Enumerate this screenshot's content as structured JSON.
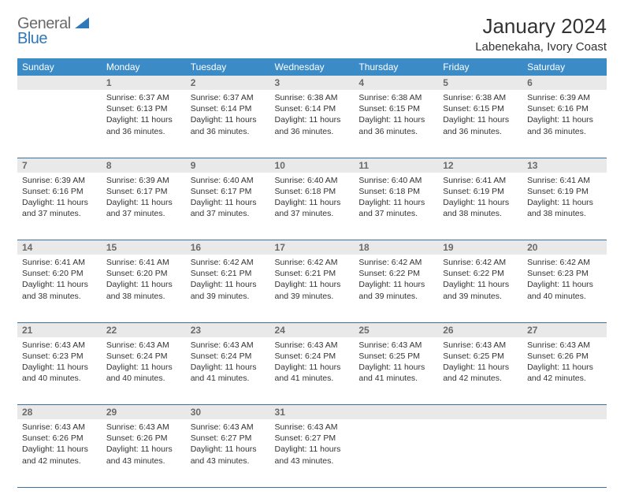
{
  "brand": {
    "general": "General",
    "blue": "Blue"
  },
  "title": {
    "month": "January 2024",
    "location": "Labenekaha, Ivory Coast"
  },
  "weekdays": [
    "Sunday",
    "Monday",
    "Tuesday",
    "Wednesday",
    "Thursday",
    "Friday",
    "Saturday"
  ],
  "colors": {
    "header_bg": "#3b8bc7",
    "header_text": "#ffffff",
    "daynum_bg": "#e9e9e9",
    "daynum_text": "#6a6a6a",
    "rule": "#3b6fa0",
    "brand_blue": "#3178b9",
    "brand_gray": "#6b6b6b",
    "body_text": "#333333",
    "page_bg": "#ffffff"
  },
  "weeks": [
    [
      {
        "n": "",
        "lines": []
      },
      {
        "n": "1",
        "lines": [
          "Sunrise: 6:37 AM",
          "Sunset: 6:13 PM",
          "Daylight: 11 hours and 36 minutes."
        ]
      },
      {
        "n": "2",
        "lines": [
          "Sunrise: 6:37 AM",
          "Sunset: 6:14 PM",
          "Daylight: 11 hours and 36 minutes."
        ]
      },
      {
        "n": "3",
        "lines": [
          "Sunrise: 6:38 AM",
          "Sunset: 6:14 PM",
          "Daylight: 11 hours and 36 minutes."
        ]
      },
      {
        "n": "4",
        "lines": [
          "Sunrise: 6:38 AM",
          "Sunset: 6:15 PM",
          "Daylight: 11 hours and 36 minutes."
        ]
      },
      {
        "n": "5",
        "lines": [
          "Sunrise: 6:38 AM",
          "Sunset: 6:15 PM",
          "Daylight: 11 hours and 36 minutes."
        ]
      },
      {
        "n": "6",
        "lines": [
          "Sunrise: 6:39 AM",
          "Sunset: 6:16 PM",
          "Daylight: 11 hours and 36 minutes."
        ]
      }
    ],
    [
      {
        "n": "7",
        "lines": [
          "Sunrise: 6:39 AM",
          "Sunset: 6:16 PM",
          "Daylight: 11 hours and 37 minutes."
        ]
      },
      {
        "n": "8",
        "lines": [
          "Sunrise: 6:39 AM",
          "Sunset: 6:17 PM",
          "Daylight: 11 hours and 37 minutes."
        ]
      },
      {
        "n": "9",
        "lines": [
          "Sunrise: 6:40 AM",
          "Sunset: 6:17 PM",
          "Daylight: 11 hours and 37 minutes."
        ]
      },
      {
        "n": "10",
        "lines": [
          "Sunrise: 6:40 AM",
          "Sunset: 6:18 PM",
          "Daylight: 11 hours and 37 minutes."
        ]
      },
      {
        "n": "11",
        "lines": [
          "Sunrise: 6:40 AM",
          "Sunset: 6:18 PM",
          "Daylight: 11 hours and 37 minutes."
        ]
      },
      {
        "n": "12",
        "lines": [
          "Sunrise: 6:41 AM",
          "Sunset: 6:19 PM",
          "Daylight: 11 hours and 38 minutes."
        ]
      },
      {
        "n": "13",
        "lines": [
          "Sunrise: 6:41 AM",
          "Sunset: 6:19 PM",
          "Daylight: 11 hours and 38 minutes."
        ]
      }
    ],
    [
      {
        "n": "14",
        "lines": [
          "Sunrise: 6:41 AM",
          "Sunset: 6:20 PM",
          "Daylight: 11 hours and 38 minutes."
        ]
      },
      {
        "n": "15",
        "lines": [
          "Sunrise: 6:41 AM",
          "Sunset: 6:20 PM",
          "Daylight: 11 hours and 38 minutes."
        ]
      },
      {
        "n": "16",
        "lines": [
          "Sunrise: 6:42 AM",
          "Sunset: 6:21 PM",
          "Daylight: 11 hours and 39 minutes."
        ]
      },
      {
        "n": "17",
        "lines": [
          "Sunrise: 6:42 AM",
          "Sunset: 6:21 PM",
          "Daylight: 11 hours and 39 minutes."
        ]
      },
      {
        "n": "18",
        "lines": [
          "Sunrise: 6:42 AM",
          "Sunset: 6:22 PM",
          "Daylight: 11 hours and 39 minutes."
        ]
      },
      {
        "n": "19",
        "lines": [
          "Sunrise: 6:42 AM",
          "Sunset: 6:22 PM",
          "Daylight: 11 hours and 39 minutes."
        ]
      },
      {
        "n": "20",
        "lines": [
          "Sunrise: 6:42 AM",
          "Sunset: 6:23 PM",
          "Daylight: 11 hours and 40 minutes."
        ]
      }
    ],
    [
      {
        "n": "21",
        "lines": [
          "Sunrise: 6:43 AM",
          "Sunset: 6:23 PM",
          "Daylight: 11 hours and 40 minutes."
        ]
      },
      {
        "n": "22",
        "lines": [
          "Sunrise: 6:43 AM",
          "Sunset: 6:24 PM",
          "Daylight: 11 hours and 40 minutes."
        ]
      },
      {
        "n": "23",
        "lines": [
          "Sunrise: 6:43 AM",
          "Sunset: 6:24 PM",
          "Daylight: 11 hours and 41 minutes."
        ]
      },
      {
        "n": "24",
        "lines": [
          "Sunrise: 6:43 AM",
          "Sunset: 6:24 PM",
          "Daylight: 11 hours and 41 minutes."
        ]
      },
      {
        "n": "25",
        "lines": [
          "Sunrise: 6:43 AM",
          "Sunset: 6:25 PM",
          "Daylight: 11 hours and 41 minutes."
        ]
      },
      {
        "n": "26",
        "lines": [
          "Sunrise: 6:43 AM",
          "Sunset: 6:25 PM",
          "Daylight: 11 hours and 42 minutes."
        ]
      },
      {
        "n": "27",
        "lines": [
          "Sunrise: 6:43 AM",
          "Sunset: 6:26 PM",
          "Daylight: 11 hours and 42 minutes."
        ]
      }
    ],
    [
      {
        "n": "28",
        "lines": [
          "Sunrise: 6:43 AM",
          "Sunset: 6:26 PM",
          "Daylight: 11 hours and 42 minutes."
        ]
      },
      {
        "n": "29",
        "lines": [
          "Sunrise: 6:43 AM",
          "Sunset: 6:26 PM",
          "Daylight: 11 hours and 43 minutes."
        ]
      },
      {
        "n": "30",
        "lines": [
          "Sunrise: 6:43 AM",
          "Sunset: 6:27 PM",
          "Daylight: 11 hours and 43 minutes."
        ]
      },
      {
        "n": "31",
        "lines": [
          "Sunrise: 6:43 AM",
          "Sunset: 6:27 PM",
          "Daylight: 11 hours and 43 minutes."
        ]
      },
      {
        "n": "",
        "lines": []
      },
      {
        "n": "",
        "lines": []
      },
      {
        "n": "",
        "lines": []
      }
    ]
  ]
}
